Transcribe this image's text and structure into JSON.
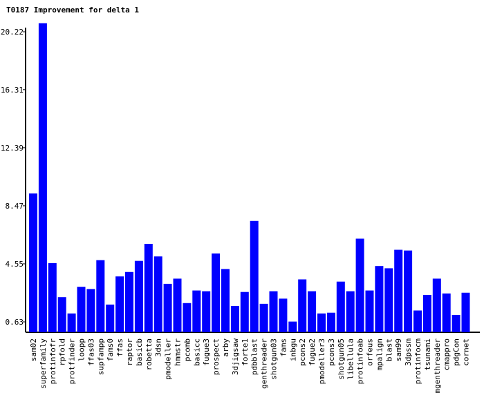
{
  "chart_data": {
    "type": "bar",
    "title": "T0187 Improvement for delta 1",
    "xlabel": "",
    "ylabel": "",
    "ylim": [
      0,
      20.6
    ],
    "yticks": [
      "20.22",
      "16.31",
      "12.39",
      "8.47",
      "4.55",
      "0.63"
    ],
    "ytick_values": [
      20.22,
      16.31,
      12.39,
      8.47,
      4.55,
      0.63
    ],
    "bar_color": "#0000ff",
    "grid": false,
    "categories": [
      "sam02",
      "superfamily",
      "protinfofr",
      "rpfold",
      "protfinder",
      "loopp",
      "ffas03",
      "supfampp",
      "fams0",
      "ffas",
      "raptor",
      "basicb",
      "robetta",
      "3dsn",
      "pmodeller",
      "hmmstr",
      "pcomb",
      "basicc",
      "fugue3",
      "prospect",
      "arby",
      "3djigsaw",
      "forte1",
      "pdbblast",
      "genthreader",
      "shotgun03",
      "fams",
      "inbgu",
      "pcons2",
      "fugue2",
      "pmodeller3",
      "pcons3",
      "shotgun05",
      "libellula",
      "protinfoab",
      "orfeus",
      "mpalign",
      "blast",
      "sam99",
      "3dpssm",
      "protinfocm",
      "tsunami",
      "mgenthreader",
      "cmappro",
      "pdgCon",
      "cornet"
    ],
    "values": [
      9.3,
      20.8,
      4.6,
      2.3,
      1.2,
      3.0,
      2.85,
      4.8,
      1.8,
      3.7,
      4.0,
      4.75,
      5.9,
      5.05,
      3.2,
      3.55,
      1.9,
      2.75,
      2.7,
      5.25,
      4.2,
      1.7,
      2.65,
      7.45,
      1.85,
      2.7,
      2.2,
      0.65,
      3.5,
      2.7,
      1.2,
      1.25,
      3.35,
      2.7,
      6.25,
      2.75,
      4.4,
      4.25,
      5.5,
      5.45,
      1.4,
      2.45,
      3.55,
      2.55,
      1.1,
      2.6
    ]
  }
}
